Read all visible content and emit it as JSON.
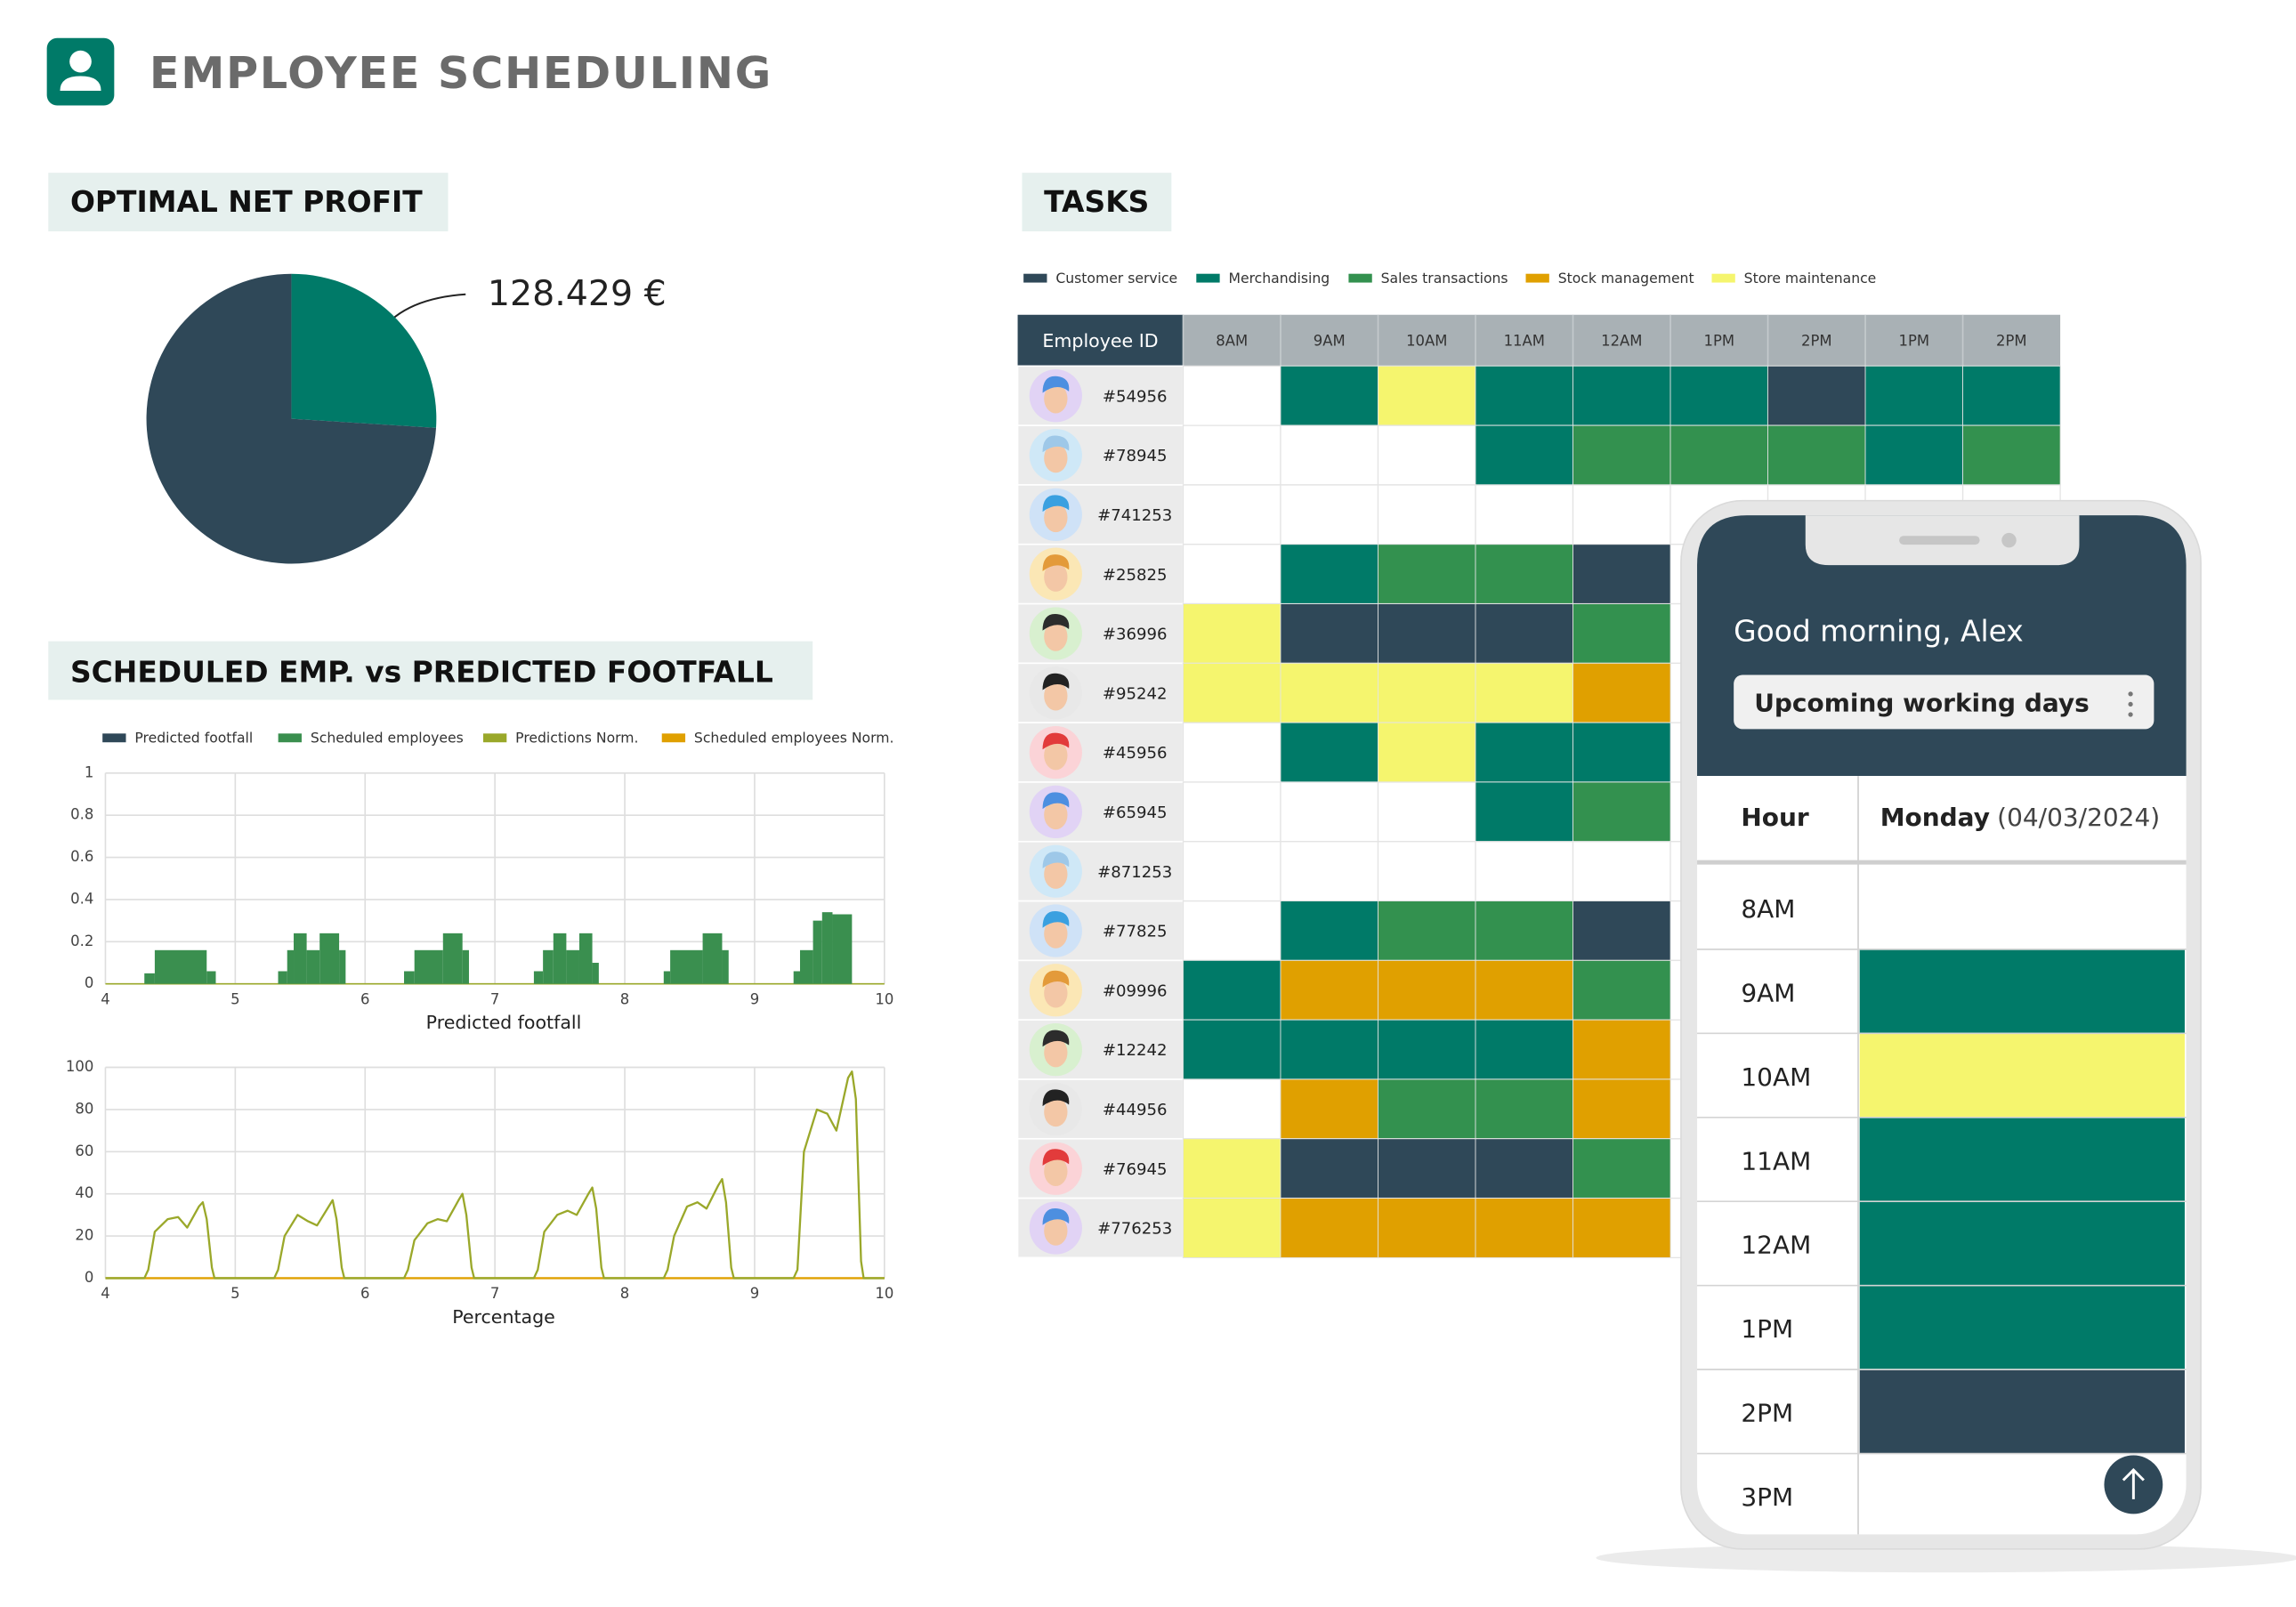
{
  "header": {
    "title": "EMPLOYEE SCHEDULING"
  },
  "chart_data": [
    {
      "type": "pie",
      "title": "OPTIMAL NET PROFIT",
      "annotation": "128.429 €",
      "values": [
        26,
        74
      ],
      "colors": [
        "#007a68",
        "#2f4858"
      ]
    },
    {
      "type": "bar",
      "title": "SCHEDULED EMP. vs PREDICTED FOOTFALL",
      "legend": [
        {
          "name": "Predicted footfall",
          "color": "#2f4858"
        },
        {
          "name": "Scheduled employees",
          "color": "#3a8f4f"
        },
        {
          "name": "Predictions Norm.",
          "color": "#9aa82a"
        },
        {
          "name": "Scheduled employees Norm.",
          "color": "#e0a000"
        }
      ],
      "x0": [
        4.3,
        4.38,
        4.78,
        5.33,
        5.4,
        5.45,
        5.55,
        5.65,
        5.8,
        6.3,
        6.38,
        6.6,
        6.75,
        7.3,
        7.37,
        7.45,
        7.55,
        7.65,
        7.75,
        8.3,
        8.35,
        8.6,
        8.75,
        9.3,
        9.35,
        9.45,
        9.52,
        9.6
      ],
      "x1": [
        4.38,
        4.78,
        4.85,
        5.4,
        5.45,
        5.55,
        5.65,
        5.8,
        5.85,
        6.38,
        6.6,
        6.75,
        6.8,
        7.37,
        7.45,
        7.55,
        7.65,
        7.75,
        7.8,
        8.35,
        8.6,
        8.75,
        8.8,
        9.35,
        9.45,
        9.52,
        9.6,
        9.75
      ],
      "values": [
        0.05,
        0.16,
        0.06,
        0.06,
        0.16,
        0.24,
        0.16,
        0.24,
        0.16,
        0.06,
        0.16,
        0.24,
        0.16,
        0.06,
        0.16,
        0.24,
        0.16,
        0.24,
        0.1,
        0.06,
        0.16,
        0.24,
        0.16,
        0.06,
        0.16,
        0.3,
        0.34,
        0.33
      ],
      "color": "#3a8f4f",
      "xlim": [
        4,
        10
      ],
      "ylim": [
        0,
        1
      ],
      "xticks": [
        4,
        5,
        6,
        7,
        8,
        9,
        10
      ],
      "yticks": [
        0,
        0.2,
        0.4,
        0.6,
        0.8,
        1
      ],
      "xlabel": "Predicted footfall",
      "grid": true
    },
    {
      "type": "line",
      "xlim": [
        4,
        10
      ],
      "ylim": [
        0,
        100
      ],
      "xticks": [
        4,
        5,
        6,
        7,
        8,
        9,
        10
      ],
      "yticks": [
        0,
        20,
        40,
        60,
        80,
        100
      ],
      "xlabel": "Percentage",
      "grid": true,
      "series": [
        {
          "color": "#9aa82a",
          "x": [
            4,
            4.3,
            4.33,
            4.38,
            4.48,
            4.56,
            4.63,
            4.72,
            4.75,
            4.78,
            4.82,
            4.84,
            5.3,
            5.33,
            5.38,
            5.48,
            5.56,
            5.63,
            5.72,
            5.75,
            5.78,
            5.82,
            5.84,
            6.3,
            6.33,
            6.38,
            6.48,
            6.56,
            6.63,
            6.72,
            6.75,
            6.78,
            6.82,
            6.84,
            7.3,
            7.33,
            7.38,
            7.48,
            7.56,
            7.63,
            7.72,
            7.75,
            7.78,
            7.82,
            7.84,
            8.3,
            8.33,
            8.38,
            8.48,
            8.56,
            8.63,
            8.72,
            8.75,
            8.78,
            8.82,
            8.84,
            9.3,
            9.33,
            9.38,
            9.48,
            9.56,
            9.63,
            9.72,
            9.75,
            9.78,
            9.82,
            9.84,
            10
          ],
          "values": [
            0,
            0,
            4,
            22,
            28,
            29,
            24,
            34,
            36,
            28,
            5,
            0,
            0,
            4,
            20,
            30,
            27,
            25,
            34,
            37,
            28,
            5,
            0,
            0,
            4,
            18,
            26,
            28,
            27,
            37,
            40,
            30,
            5,
            0,
            0,
            4,
            22,
            30,
            32,
            30,
            40,
            43,
            33,
            5,
            0,
            0,
            4,
            20,
            34,
            36,
            33,
            44,
            47,
            36,
            5,
            0,
            0,
            4,
            60,
            80,
            78,
            70,
            95,
            98,
            85,
            8,
            0,
            0
          ]
        },
        {
          "color": "#e0a000",
          "x": [
            4,
            10
          ],
          "values": [
            0,
            0
          ]
        }
      ]
    }
  ],
  "tasks": {
    "title": "TASKS",
    "legend": [
      {
        "name": "Customer service",
        "color": "#2f4858"
      },
      {
        "name": "Merchandising",
        "color": "#007a68"
      },
      {
        "name": "Sales transactions",
        "color": "#33914f"
      },
      {
        "name": "Stock management",
        "color": "#e0a000"
      },
      {
        "name": "Store maintenance",
        "color": "#f5f56e"
      }
    ],
    "id_header": "Employee ID",
    "hours": [
      "8AM",
      "9AM",
      "10AM",
      "11AM",
      "12AM",
      "1PM",
      "2PM",
      "1PM",
      "2PM"
    ],
    "rows": [
      {
        "id": "#54956",
        "cells": [
          null,
          1,
          4,
          1,
          1,
          1,
          0,
          1,
          1
        ]
      },
      {
        "id": "#78945",
        "cells": [
          null,
          null,
          null,
          1,
          2,
          2,
          2,
          1,
          2
        ]
      },
      {
        "id": "#741253",
        "cells": [
          null,
          null,
          null,
          null,
          null
        ]
      },
      {
        "id": "#25825",
        "cells": [
          null,
          1,
          2,
          2,
          0
        ]
      },
      {
        "id": "#36996",
        "cells": [
          4,
          0,
          0,
          0,
          2
        ]
      },
      {
        "id": "#95242",
        "cells": [
          4,
          4,
          4,
          4,
          3
        ]
      },
      {
        "id": "#45956",
        "cells": [
          null,
          1,
          4,
          1,
          1
        ]
      },
      {
        "id": "#65945",
        "cells": [
          null,
          null,
          null,
          1,
          2
        ]
      },
      {
        "id": "#871253",
        "cells": [
          null,
          null,
          null,
          null,
          null
        ]
      },
      {
        "id": "#77825",
        "cells": [
          null,
          1,
          2,
          2,
          0
        ]
      },
      {
        "id": "#09996",
        "cells": [
          1,
          3,
          3,
          3,
          2
        ]
      },
      {
        "id": "#12242",
        "cells": [
          1,
          1,
          1,
          1,
          3
        ]
      },
      {
        "id": "#44956",
        "cells": [
          null,
          3,
          2,
          2,
          3
        ]
      },
      {
        "id": "#76945",
        "cells": [
          4,
          0,
          0,
          0,
          2
        ]
      },
      {
        "id": "#776253",
        "cells": [
          4,
          3,
          3,
          3,
          3
        ]
      }
    ]
  },
  "phone": {
    "greeting": "Good morning, Alex",
    "dropdown": "Upcoming working days",
    "hour_header": "Hour",
    "day": "Monday",
    "date": "(04/03/2024)",
    "rows": [
      {
        "hour": "8AM",
        "task": null
      },
      {
        "hour": "9AM",
        "task": 1
      },
      {
        "hour": "10AM",
        "task": 4
      },
      {
        "hour": "11AM",
        "task": 1
      },
      {
        "hour": "12AM",
        "task": 1
      },
      {
        "hour": "1PM",
        "task": 1
      },
      {
        "hour": "2PM",
        "task": 0
      },
      {
        "hour": "3PM",
        "task": null
      }
    ]
  }
}
